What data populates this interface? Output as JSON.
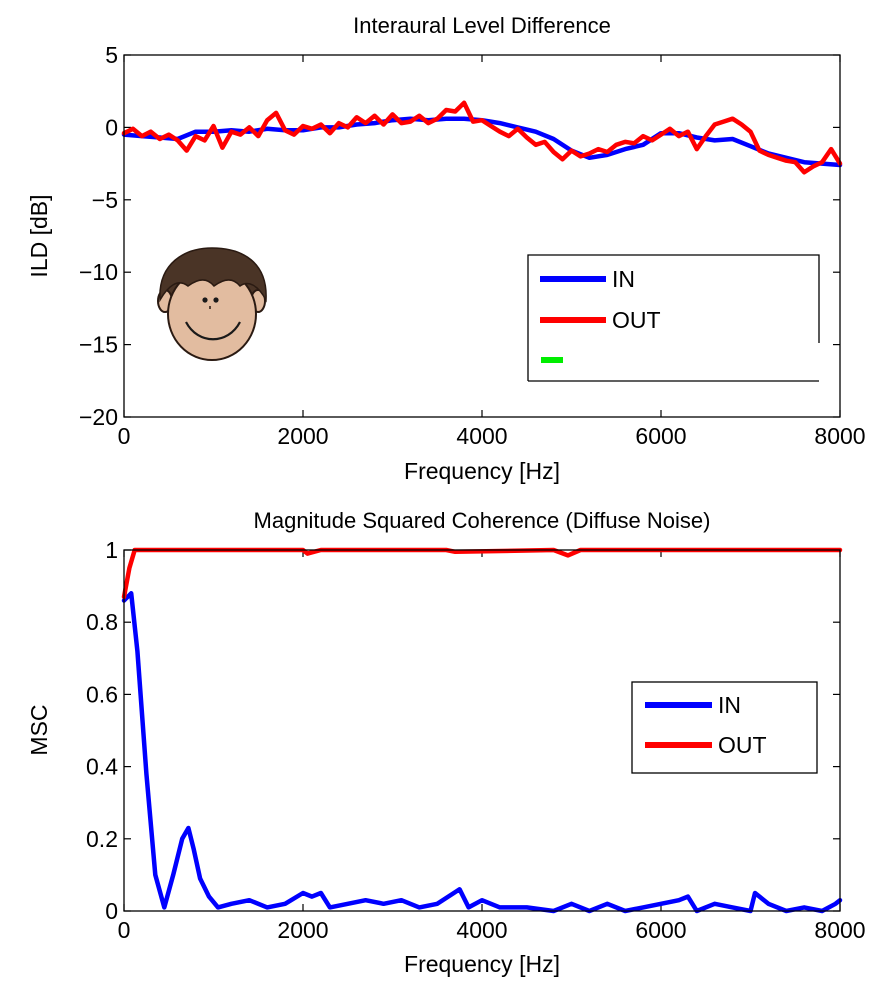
{
  "chart_data": [
    {
      "type": "line",
      "title": "Interaural Level Difference",
      "xlabel": "Frequency [Hz]",
      "ylabel": "ILD [dB]",
      "xlim": [
        0,
        8000
      ],
      "ylim": [
        -20,
        5
      ],
      "xticks": [
        0,
        2000,
        4000,
        6000,
        8000
      ],
      "xtick_labels": [
        "0",
        "2000",
        "4000",
        "6000",
        "8000"
      ],
      "yticks": [
        5,
        0,
        -5,
        -10,
        -15,
        -20
      ],
      "ytick_labels": [
        "5",
        "0",
        "−5",
        "−10",
        "−15",
        "−20"
      ],
      "grid": false,
      "legend_position": "lower-right",
      "series": [
        {
          "name": "IN",
          "color": "#0000ff",
          "x": [
            0,
            200,
            400,
            600,
            800,
            1000,
            1200,
            1400,
            1600,
            1800,
            2000,
            2200,
            2400,
            2600,
            2800,
            3000,
            3200,
            3400,
            3600,
            3800,
            4000,
            4200,
            4400,
            4600,
            4800,
            5000,
            5200,
            5400,
            5600,
            5800,
            6000,
            6200,
            6400,
            6600,
            6800,
            7000,
            7200,
            7400,
            7600,
            7800,
            8000
          ],
          "y": [
            -0.5,
            -0.6,
            -0.7,
            -0.8,
            -0.3,
            -0.3,
            -0.2,
            -0.3,
            -0.1,
            -0.2,
            -0.2,
            0.0,
            0.0,
            0.2,
            0.3,
            0.5,
            0.6,
            0.5,
            0.6,
            0.6,
            0.5,
            0.3,
            0.0,
            -0.3,
            -0.8,
            -1.6,
            -2.1,
            -1.9,
            -1.5,
            -1.2,
            -0.4,
            -0.4,
            -0.7,
            -0.9,
            -0.8,
            -1.3,
            -1.8,
            -2.1,
            -2.4,
            -2.5,
            -2.6
          ]
        },
        {
          "name": "OUT",
          "color": "#ff0000",
          "x": [
            0,
            100,
            200,
            300,
            400,
            500,
            600,
            700,
            800,
            900,
            1000,
            1100,
            1200,
            1300,
            1400,
            1500,
            1600,
            1700,
            1800,
            1900,
            2000,
            2100,
            2200,
            2300,
            2400,
            2500,
            2600,
            2700,
            2800,
            2900,
            3000,
            3100,
            3200,
            3300,
            3400,
            3500,
            3600,
            3700,
            3800,
            3900,
            4000,
            4100,
            4200,
            4300,
            4400,
            4500,
            4600,
            4700,
            4800,
            4900,
            5000,
            5100,
            5200,
            5300,
            5400,
            5500,
            5600,
            5700,
            5800,
            5900,
            6000,
            6100,
            6200,
            6300,
            6400,
            6500,
            6600,
            6700,
            6800,
            6900,
            7000,
            7100,
            7200,
            7300,
            7400,
            7500,
            7600,
            7700,
            7800,
            7900,
            8000
          ],
          "y": [
            -0.4,
            -0.1,
            -0.6,
            -0.3,
            -0.8,
            -0.5,
            -0.9,
            -1.6,
            -0.6,
            -0.9,
            0.1,
            -1.4,
            -0.3,
            -0.5,
            0.0,
            -0.6,
            0.5,
            1.0,
            -0.2,
            -0.5,
            0.1,
            -0.1,
            0.2,
            -0.4,
            0.3,
            0.0,
            0.7,
            0.3,
            0.8,
            0.2,
            0.9,
            0.3,
            0.4,
            0.8,
            0.3,
            0.6,
            1.2,
            1.1,
            1.7,
            0.4,
            0.5,
            0.1,
            -0.3,
            -0.6,
            -0.1,
            -0.7,
            -1.2,
            -1.0,
            -1.7,
            -2.2,
            -1.6,
            -2.0,
            -1.8,
            -1.5,
            -1.7,
            -1.2,
            -1.0,
            -1.1,
            -0.6,
            -0.9,
            -0.5,
            -0.1,
            -0.6,
            -0.3,
            -1.5,
            -0.6,
            0.2,
            0.4,
            0.6,
            0.2,
            -0.3,
            -1.6,
            -1.9,
            -2.1,
            -2.3,
            -2.4,
            -3.1,
            -2.7,
            -2.4,
            -1.5,
            -2.5
          ]
        }
      ],
      "extra_legend_marker_color": "#00ee00"
    },
    {
      "type": "line",
      "title": "Magnitude Squared Coherence (Diffuse Noise)",
      "xlabel": "Frequency [Hz]",
      "ylabel": "MSC",
      "xlim": [
        0,
        8000
      ],
      "ylim": [
        0,
        1
      ],
      "xticks": [
        0,
        2000,
        4000,
        6000,
        8000
      ],
      "xtick_labels": [
        "0",
        "2000",
        "4000",
        "6000",
        "8000"
      ],
      "yticks": [
        1,
        0.8,
        0.6,
        0.4,
        0.2,
        0
      ],
      "ytick_labels": [
        "1",
        "0.8",
        "0.6",
        "0.4",
        "0.2",
        "0"
      ],
      "grid": false,
      "legend_position": "right",
      "series": [
        {
          "name": "IN",
          "color": "#0000ff",
          "x": [
            0,
            80,
            150,
            250,
            350,
            450,
            550,
            650,
            720,
            780,
            850,
            950,
            1050,
            1200,
            1400,
            1600,
            1800,
            2000,
            2100,
            2200,
            2300,
            2500,
            2700,
            2900,
            3100,
            3300,
            3500,
            3750,
            3850,
            4000,
            4200,
            4500,
            4800,
            5000,
            5200,
            5400,
            5600,
            5800,
            6000,
            6200,
            6300,
            6400,
            6600,
            6800,
            7000,
            7050,
            7200,
            7400,
            7600,
            7800,
            7950,
            8000
          ],
          "y": [
            0.86,
            0.88,
            0.72,
            0.38,
            0.1,
            0.01,
            0.1,
            0.2,
            0.23,
            0.17,
            0.09,
            0.04,
            0.01,
            0.02,
            0.03,
            0.01,
            0.02,
            0.05,
            0.04,
            0.05,
            0.01,
            0.02,
            0.03,
            0.02,
            0.03,
            0.01,
            0.02,
            0.06,
            0.01,
            0.03,
            0.01,
            0.01,
            0.0,
            0.02,
            0.0,
            0.02,
            0.0,
            0.01,
            0.02,
            0.03,
            0.04,
            0.0,
            0.02,
            0.01,
            0.0,
            0.05,
            0.02,
            0.0,
            0.01,
            0.0,
            0.02,
            0.03
          ]
        },
        {
          "name": "OUT",
          "color": "#ff0000",
          "x": [
            0,
            60,
            120,
            1500,
            2000,
            2050,
            2200,
            2400,
            3600,
            3700,
            4800,
            4960,
            5100,
            8000
          ],
          "y": [
            0.87,
            0.95,
            1.0,
            1.0,
            1.0,
            0.99,
            1.0,
            1.0,
            1.0,
            0.995,
            1.0,
            0.985,
            1.0,
            1.0
          ]
        }
      ]
    }
  ]
}
